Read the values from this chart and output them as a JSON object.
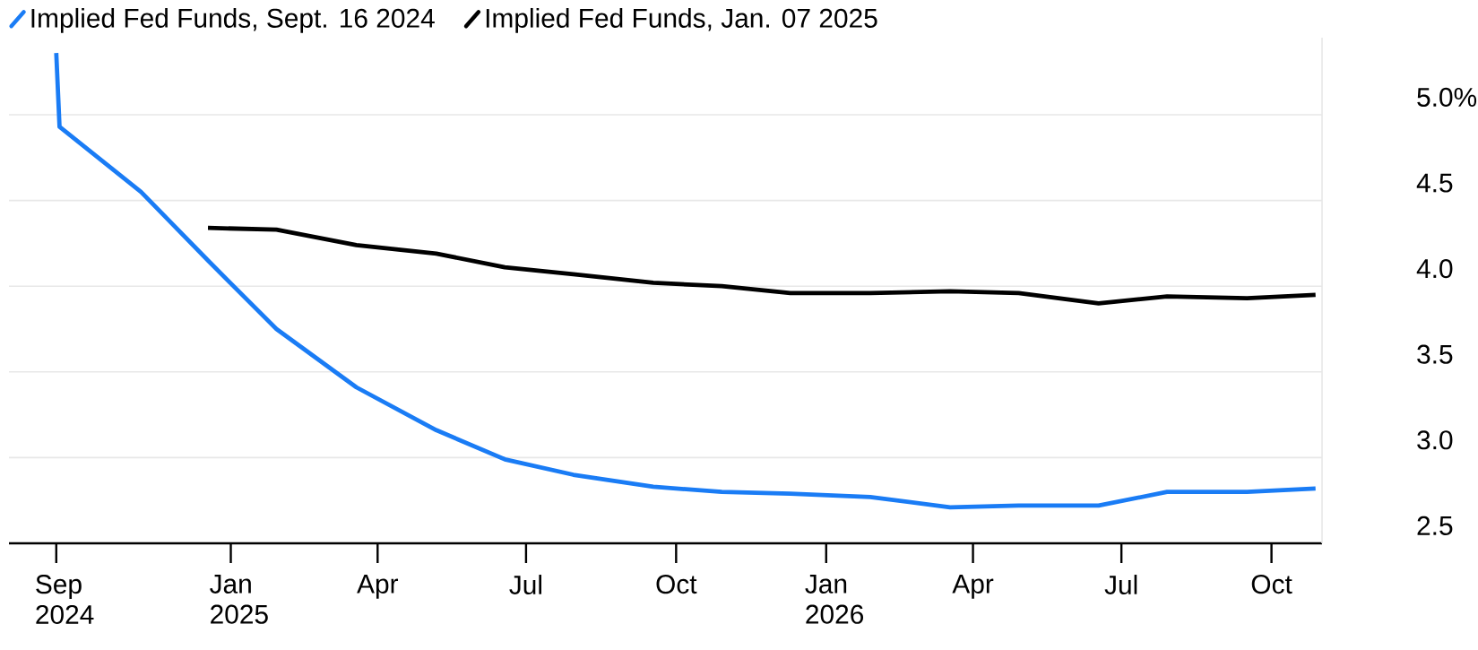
{
  "chart_data": {
    "type": "line",
    "xlim": [
      "2024-08-18",
      "2026-11-01"
    ],
    "ylim": [
      2.5,
      5.45
    ],
    "xticks": [
      {
        "value": "2024-09-16",
        "label": "Sep 2024"
      },
      {
        "value": "2025-01-01",
        "label": "Jan 2025"
      },
      {
        "value": "2025-04-01",
        "label": "Apr"
      },
      {
        "value": "2025-07-01",
        "label": "Jul"
      },
      {
        "value": "2025-10-01",
        "label": "Oct"
      },
      {
        "value": "2026-01-01",
        "label": "Jan 2026"
      },
      {
        "value": "2026-04-01",
        "label": "Apr"
      },
      {
        "value": "2026-07-01",
        "label": "Jul"
      },
      {
        "value": "2026-10-01",
        "label": "Oct"
      }
    ],
    "yticks": [
      {
        "value": 2.5,
        "label": "2.5"
      },
      {
        "value": 3.0,
        "label": "3.0"
      },
      {
        "value": 3.5,
        "label": "3.5"
      },
      {
        "value": 4.0,
        "label": "4.0"
      },
      {
        "value": 4.5,
        "label": "4.5"
      },
      {
        "value": 5.0,
        "label": "5.0%"
      }
    ],
    "grid": "y",
    "legend": "top left",
    "marker": "none",
    "line_style": "solid",
    "series": [
      {
        "name": "Implied Fed Funds, Sept. 16 2024",
        "color": "#1a7cf5",
        "x": [
          "2024-09-16",
          "2024-09-18",
          "2024-11-07",
          "2024-12-18",
          "2025-01-29",
          "2025-03-19",
          "2025-05-07",
          "2025-06-18",
          "2025-07-30",
          "2025-09-17",
          "2025-10-29",
          "2025-12-10",
          "2026-01-28",
          "2026-03-18",
          "2026-04-29",
          "2026-06-17",
          "2026-07-29",
          "2026-09-16",
          "2026-10-28"
        ],
        "values": [
          5.36,
          4.93,
          4.55,
          4.15,
          3.75,
          3.41,
          3.16,
          2.99,
          2.9,
          2.83,
          2.8,
          2.79,
          2.77,
          2.71,
          2.72,
          2.72,
          2.8,
          2.8,
          2.82
        ]
      },
      {
        "name": "Implied Fed Funds, Jan. 07 2025",
        "color": "#000000",
        "x": [
          "2024-12-18",
          "2025-01-29",
          "2025-03-19",
          "2025-05-07",
          "2025-06-18",
          "2025-07-30",
          "2025-09-17",
          "2025-10-29",
          "2025-12-10",
          "2026-01-28",
          "2026-03-18",
          "2026-04-29",
          "2026-06-17",
          "2026-07-29",
          "2026-09-16",
          "2026-10-28"
        ],
        "values": [
          4.34,
          4.33,
          4.24,
          4.19,
          4.11,
          4.07,
          4.02,
          4.0,
          3.96,
          3.96,
          3.97,
          3.96,
          3.9,
          3.94,
          3.93,
          3.95
        ]
      }
    ]
  }
}
